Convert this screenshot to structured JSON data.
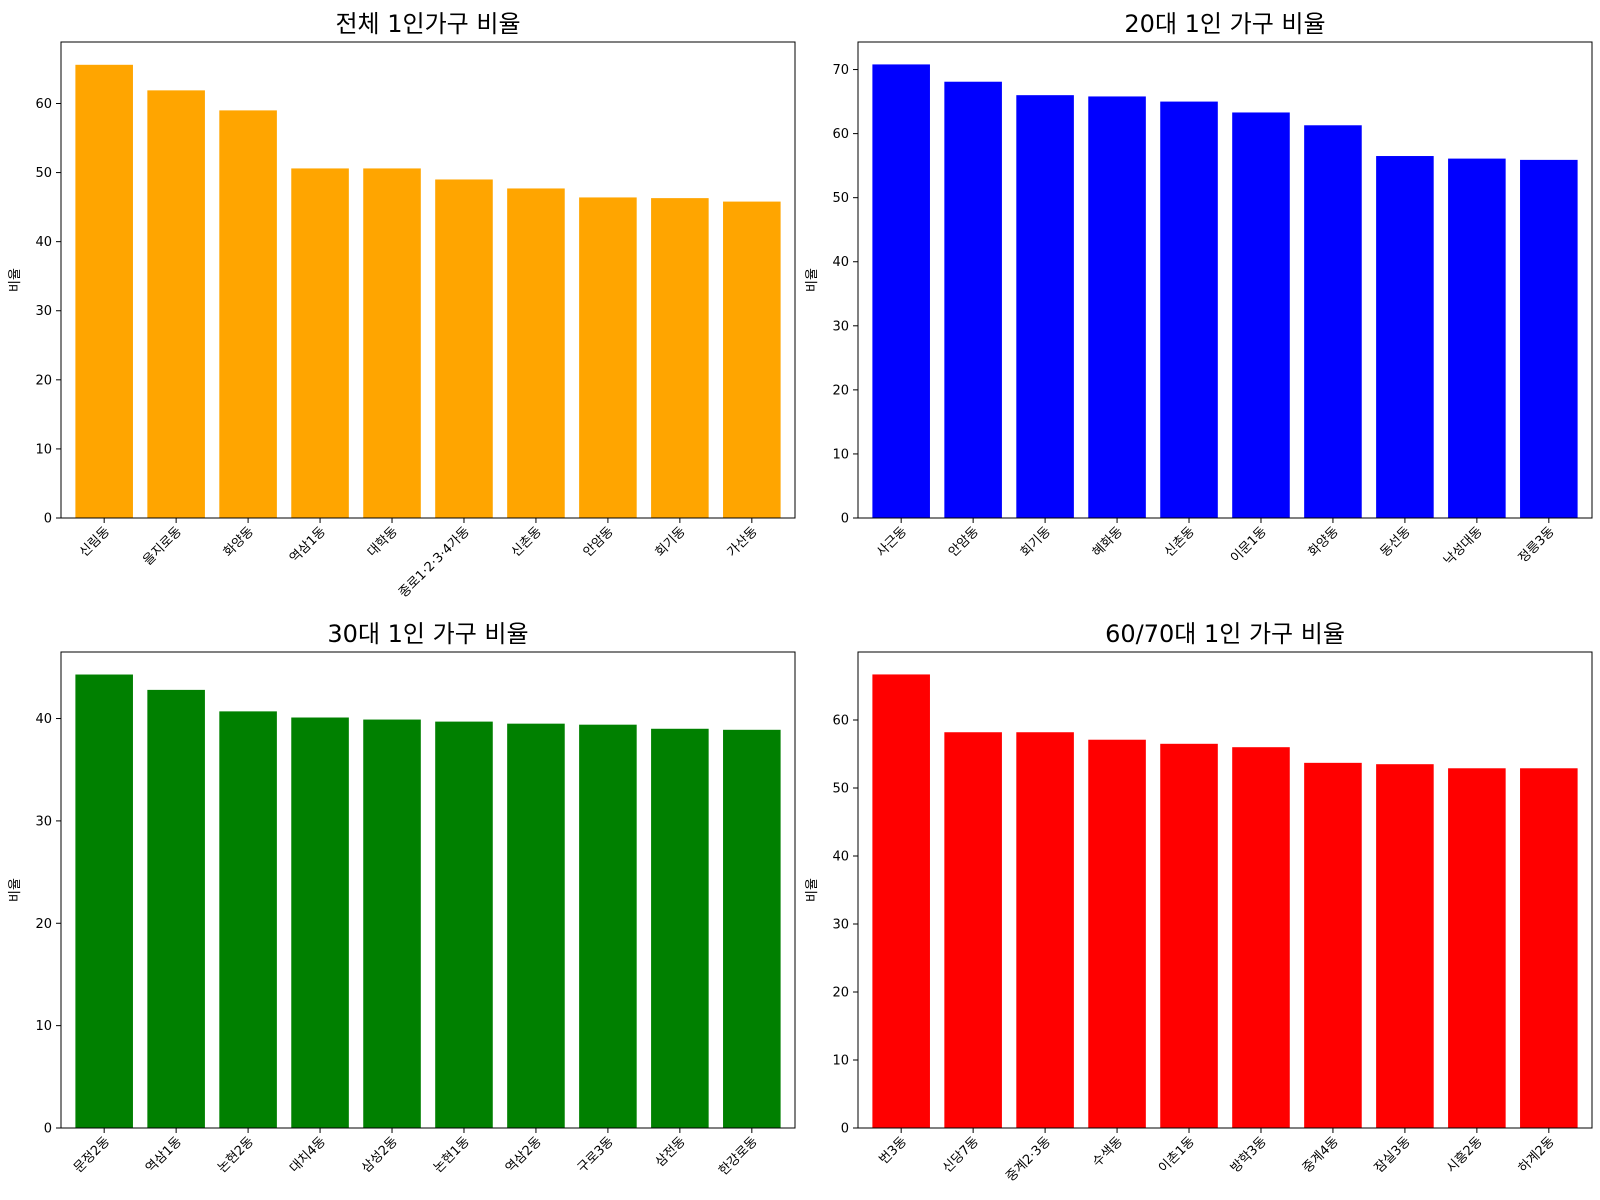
{
  "chart_data": [
    {
      "type": "bar",
      "title": "전체 1인가구 비율",
      "ylabel": "비율",
      "xlabel": "",
      "color": "#FFA500",
      "ylim": [
        0,
        68.9
      ],
      "yticks": [
        0,
        10,
        20,
        30,
        40,
        50,
        60
      ],
      "categories": [
        "신림동",
        "을지로동",
        "화양동",
        "역삼1동",
        "대학동",
        "종로1·2·3·4가동",
        "신촌동",
        "안암동",
        "회기동",
        "가산동"
      ],
      "values": [
        65.6,
        61.9,
        59.0,
        50.6,
        50.6,
        49.0,
        47.7,
        46.4,
        46.3,
        45.8
      ]
    },
    {
      "type": "bar",
      "title": "20대 1인 가구 비율",
      "ylabel": "비율",
      "xlabel": "",
      "color": "#0000FF",
      "ylim": [
        0,
        74.3
      ],
      "yticks": [
        0,
        10,
        20,
        30,
        40,
        50,
        60,
        70
      ],
      "categories": [
        "사근동",
        "안암동",
        "회기동",
        "혜화동",
        "신촌동",
        "이문1동",
        "화양동",
        "동선동",
        "낙성대동",
        "정릉3동"
      ],
      "values": [
        70.8,
        68.1,
        66.0,
        65.8,
        65.0,
        63.3,
        61.3,
        56.5,
        56.1,
        55.9
      ]
    },
    {
      "type": "bar",
      "title": "30대 1인 가구 비율",
      "ylabel": "비율",
      "xlabel": "",
      "color": "#008000",
      "ylim": [
        0,
        46.5
      ],
      "yticks": [
        0,
        10,
        20,
        30,
        40
      ],
      "categories": [
        "문정2동",
        "역삼1동",
        "논현2동",
        "대치4동",
        "삼성2동",
        "논현1동",
        "역삼2동",
        "구로3동",
        "삼전동",
        "한강로동"
      ],
      "values": [
        44.3,
        42.8,
        40.7,
        40.1,
        39.9,
        39.7,
        39.5,
        39.4,
        39.0,
        38.9
      ]
    },
    {
      "type": "bar",
      "title": "60/70대 1인 가구 비율",
      "ylabel": "비율",
      "xlabel": "",
      "color": "#FF0000",
      "ylim": [
        0,
        70.0
      ],
      "yticks": [
        0,
        10,
        20,
        30,
        40,
        50,
        60
      ],
      "categories": [
        "번3동",
        "신당7동",
        "중계2·3동",
        "수색동",
        "이촌1동",
        "방학3동",
        "중계4동",
        "잠실3동",
        "시흥2동",
        "하계2동"
      ],
      "values": [
        66.7,
        58.2,
        58.2,
        57.1,
        56.5,
        56.0,
        53.7,
        53.5,
        52.9,
        52.9
      ]
    }
  ]
}
